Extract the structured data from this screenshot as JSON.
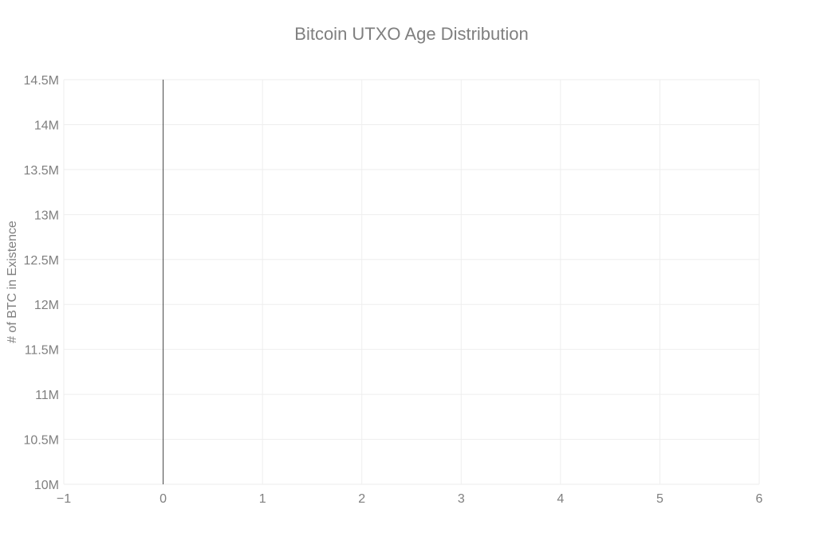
{
  "chart_data": {
    "type": "line",
    "title": "Bitcoin UTXO Age Distribution",
    "xlabel": "",
    "ylabel": "# of BTC in Existence",
    "xlim": [
      -1,
      6
    ],
    "ylim": [
      10000000,
      14500000
    ],
    "x_ticks": [
      {
        "value": -1,
        "label": "−1"
      },
      {
        "value": 0,
        "label": "0"
      },
      {
        "value": 1,
        "label": "1"
      },
      {
        "value": 2,
        "label": "2"
      },
      {
        "value": 3,
        "label": "3"
      },
      {
        "value": 4,
        "label": "4"
      },
      {
        "value": 5,
        "label": "5"
      },
      {
        "value": 6,
        "label": "6"
      }
    ],
    "y_ticks": [
      {
        "value": 10000000,
        "label": "10M"
      },
      {
        "value": 10500000,
        "label": "10.5M"
      },
      {
        "value": 11000000,
        "label": "11M"
      },
      {
        "value": 11500000,
        "label": "11.5M"
      },
      {
        "value": 12000000,
        "label": "12M"
      },
      {
        "value": 12500000,
        "label": "12.5M"
      },
      {
        "value": 13000000,
        "label": "13M"
      },
      {
        "value": 13500000,
        "label": "13.5M"
      },
      {
        "value": 14000000,
        "label": "14M"
      },
      {
        "value": 14500000,
        "label": "14.5M"
      }
    ],
    "series": [],
    "grid": true,
    "zero_line_x": 0,
    "colors": {
      "text": "#7f7f7f",
      "grid": "#eeeeee",
      "zero_line": "#444444"
    }
  }
}
